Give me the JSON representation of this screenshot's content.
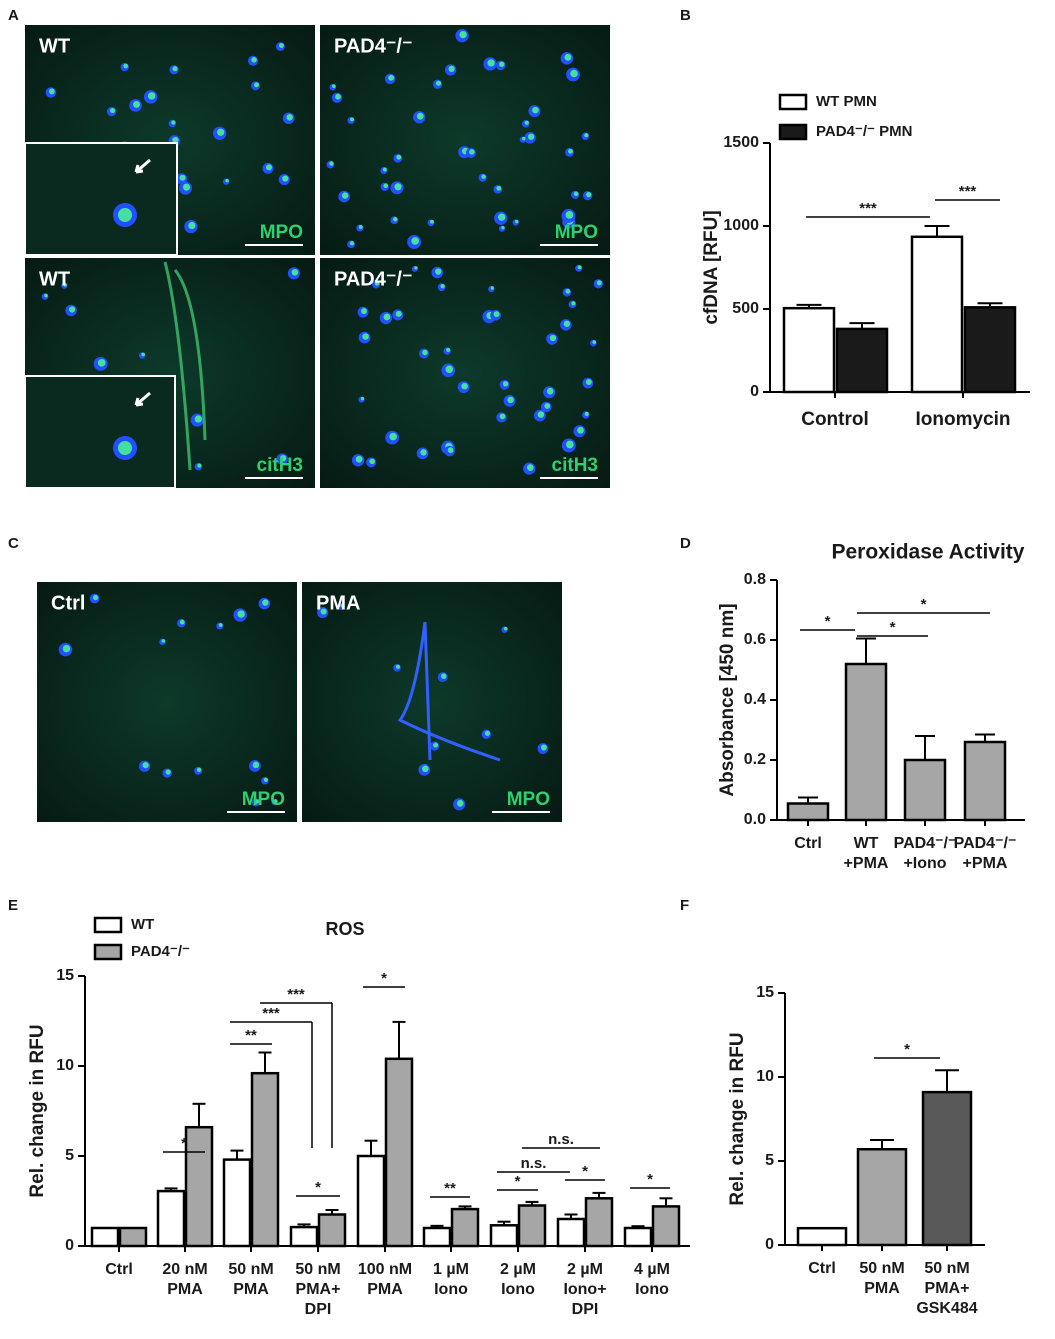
{
  "panels": {
    "letters": [
      "A",
      "B",
      "C",
      "D",
      "E",
      "F"
    ],
    "images": [
      {
        "label": "WT",
        "stain": "MPO"
      },
      {
        "label": "PAD4⁻/⁻",
        "stain": "MPO"
      },
      {
        "label": "WT",
        "stain": "citH3"
      },
      {
        "label": "PAD4⁻/⁻",
        "stain": "citH3"
      },
      {
        "label": "Ctrl",
        "stain": "MPO"
      },
      {
        "label": "PMA",
        "stain": "MPO"
      }
    ]
  },
  "chart_data": [
    {
      "type": "bar",
      "y_label": "cfDNA [RFU]",
      "categories": [
        "Control",
        "Ionomycin"
      ],
      "series": [
        {
          "name": "WT PMN",
          "color": "#ffffff",
          "values": [
            505,
            935
          ],
          "errors": [
            20,
            65
          ]
        },
        {
          "name": "PAD4⁻/⁻ PMN",
          "color": "#1a1a1a",
          "values": [
            380,
            510
          ],
          "errors": [
            35,
            25
          ]
        }
      ],
      "ylim": [
        0,
        1500
      ],
      "yticks": [
        0,
        500,
        1000,
        1500
      ],
      "annotations": [
        "***",
        "***"
      ]
    },
    {
      "type": "bar",
      "title": "Peroxidase Activity",
      "y_label": "Absorbance [450 nm]",
      "categories": [
        [
          "Ctrl"
        ],
        [
          "WT",
          "+PMA"
        ],
        [
          "PAD4⁻/⁻",
          "+Iono"
        ],
        [
          "PAD4⁻/⁻",
          "+PMA"
        ]
      ],
      "values": [
        0.055,
        0.52,
        0.2,
        0.26
      ],
      "errors": [
        0.02,
        0.085,
        0.08,
        0.025
      ],
      "color": "#a6a6a6",
      "ylim": [
        0,
        0.8
      ],
      "yticks": [
        {
          "value": 0,
          "label": "0.0"
        },
        0.2,
        0.4,
        0.6,
        0.8
      ],
      "annotations": [
        "*",
        "*",
        "*"
      ]
    },
    {
      "type": "bar",
      "title": "ROS",
      "y_label": "Rel. change in RFU",
      "categories": [
        [
          "Ctrl"
        ],
        [
          "20 nM",
          "PMA"
        ],
        [
          "50 nM",
          "PMA"
        ],
        [
          "50 nM",
          "PMA+",
          "DPI"
        ],
        [
          "100 nM",
          "PMA"
        ],
        [
          "1 µM",
          "Iono"
        ],
        [
          "2 µM",
          "Iono"
        ],
        [
          "2 µM",
          "Iono+",
          "DPI"
        ],
        [
          "4 µM",
          "Iono"
        ]
      ],
      "series": [
        {
          "name": "WT",
          "color": "#ffffff",
          "values": [
            1.0,
            3.05,
            4.8,
            1.05,
            5.0,
            1.0,
            1.15,
            1.5,
            1.0
          ],
          "errors": [
            0,
            0.15,
            0.5,
            0.15,
            0.85,
            0.12,
            0.2,
            0.25,
            0.1
          ]
        },
        {
          "name": "PAD4⁻/⁻",
          "color": "#a6a6a6",
          "values": [
            1.0,
            6.6,
            9.6,
            1.75,
            10.4,
            2.05,
            2.25,
            2.65,
            2.2
          ],
          "errors": [
            0,
            1.3,
            1.15,
            0.25,
            2.05,
            0.15,
            0.2,
            0.3,
            0.45
          ]
        }
      ],
      "ylim": [
        0,
        15
      ],
      "yticks": [
        0,
        5,
        10,
        15
      ],
      "annotations": [
        "*",
        "**",
        "***",
        "***",
        "*",
        "*",
        "**",
        "*",
        "n.s.",
        "n.s.",
        "*",
        "*"
      ]
    },
    {
      "type": "bar",
      "y_label": "Rel. change in RFU",
      "categories": [
        [
          "Ctrl"
        ],
        [
          "50 nM",
          "PMA"
        ],
        [
          "50 nM",
          "PMA+",
          "GSK484"
        ]
      ],
      "values": [
        1.0,
        5.7,
        9.1
      ],
      "errors": [
        0,
        0.55,
        1.3
      ],
      "colors": [
        "#ffffff",
        "#a6a6a6",
        "#595959"
      ],
      "ylim": [
        0,
        15
      ],
      "yticks": [
        0,
        5,
        10,
        15
      ],
      "annotations": [
        "*"
      ]
    }
  ]
}
